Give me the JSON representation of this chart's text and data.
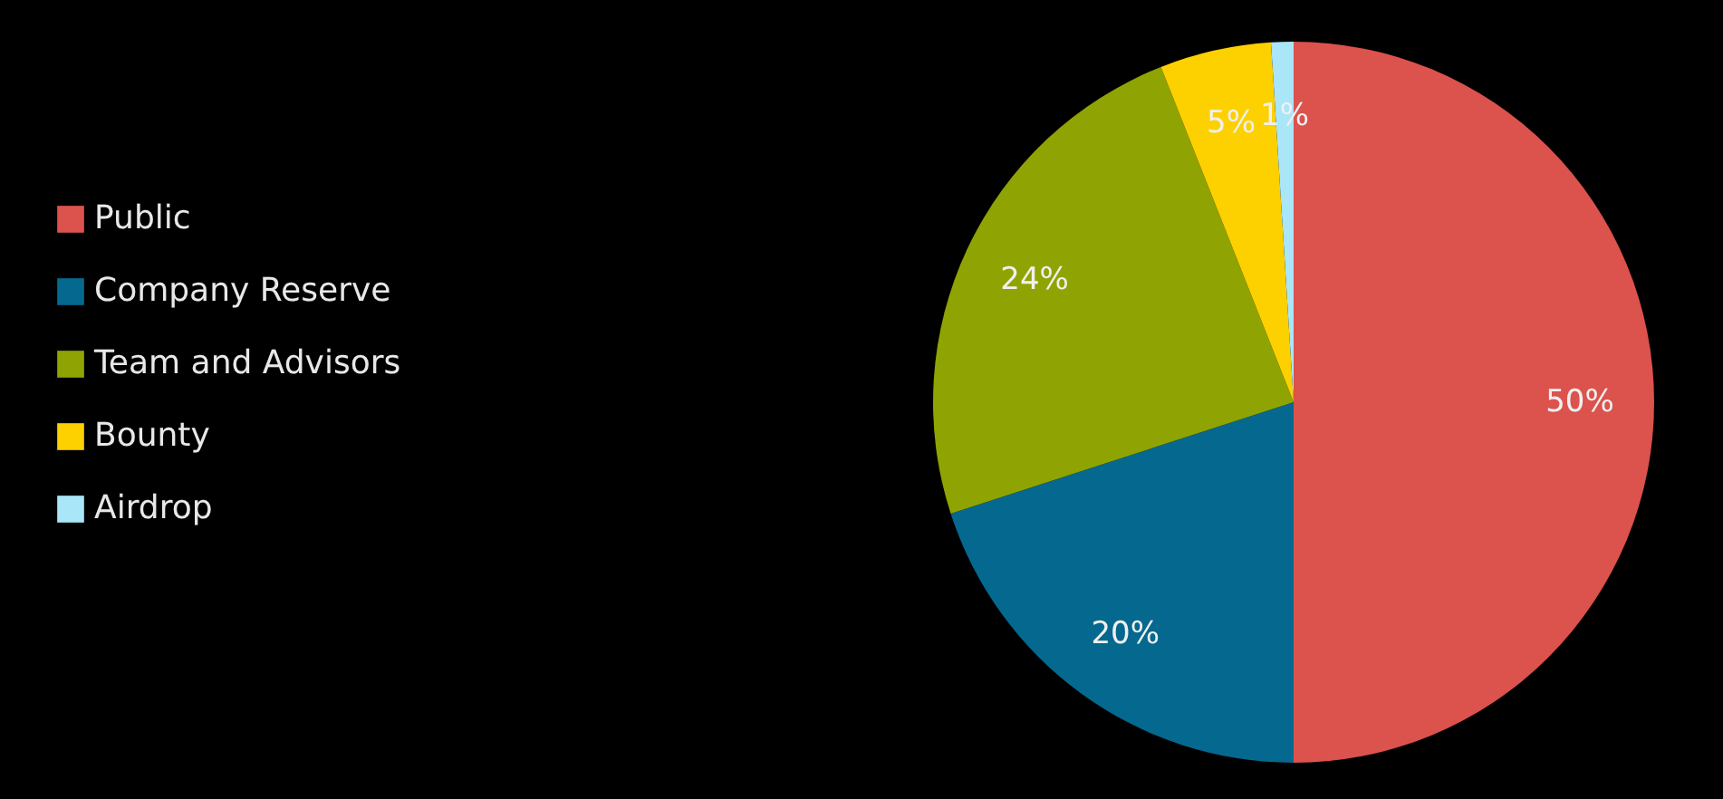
{
  "chart_data": {
    "type": "pie",
    "categories": [
      "Public",
      "Company Reserve",
      "Team and Advisors",
      "Bounty",
      "Airdrop"
    ],
    "values": [
      50,
      20,
      24,
      5,
      1
    ],
    "colors": [
      "#dc524d",
      "#05688f",
      "#8fa403",
      "#fdd000",
      "#a8e6f8"
    ],
    "value_labels": [
      "50%",
      "20%",
      "24%",
      "5%",
      "1%"
    ],
    "legend": "left"
  }
}
